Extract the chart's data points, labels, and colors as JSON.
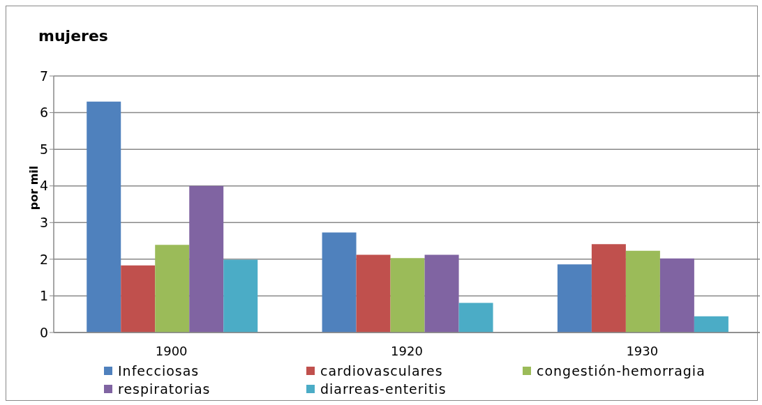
{
  "chart_data": {
    "type": "bar",
    "title": "mujeres",
    "ylabel": "por mil",
    "categories": [
      "1900",
      "1920",
      "1930"
    ],
    "series": [
      {
        "name": "Infecciosas",
        "color": "#4f81bd",
        "values": [
          6.3,
          2.73,
          1.86
        ]
      },
      {
        "name": "cardiovasculares",
        "color": "#c0504d",
        "values": [
          1.83,
          2.12,
          2.41
        ]
      },
      {
        "name": "congestión-hemorragia",
        "color": "#9bbb59",
        "values": [
          2.39,
          2.03,
          2.23
        ]
      },
      {
        "name": "respiratorias",
        "color": "#8064a2",
        "values": [
          4.0,
          2.12,
          2.02
        ]
      },
      {
        "name": "diarreas-enteritis",
        "color": "#4bacc6",
        "values": [
          1.99,
          0.81,
          0.44
        ]
      }
    ],
    "ylim": [
      0,
      7
    ],
    "yticks": [
      0,
      1,
      2,
      3,
      4,
      5,
      6,
      7
    ],
    "grid": "y",
    "legend": "bottom"
  }
}
